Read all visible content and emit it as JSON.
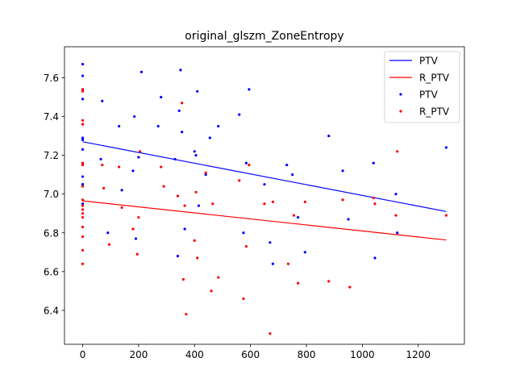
{
  "chart_data": {
    "type": "scatter",
    "title": "original_glszm_ZoneEntropy",
    "xlabel": "",
    "ylabel": "",
    "xlim": [
      -65,
      1365
    ],
    "ylim": [
      6.225,
      7.76
    ],
    "x_ticks": [
      0,
      200,
      400,
      600,
      800,
      1000,
      1200
    ],
    "x_tick_labels": [
      "0",
      "200",
      "400",
      "600",
      "800",
      "1000",
      "1200"
    ],
    "y_ticks": [
      6.4,
      6.6,
      6.8,
      7.0,
      7.2,
      7.4,
      7.6
    ],
    "y_tick_labels": [
      "6.4",
      "6.6",
      "6.8",
      "7.0",
      "7.2",
      "7.4",
      "7.6"
    ],
    "grid": false,
    "legend_position": "top-right",
    "series": [
      {
        "name": "PTV",
        "kind": "line",
        "color": "#0000ff",
        "x": [
          0,
          1300
        ],
        "y": [
          7.27,
          6.91
        ]
      },
      {
        "name": "R_PTV",
        "kind": "line",
        "color": "#ff0000",
        "x": [
          0,
          1300
        ],
        "y": [
          6.965,
          6.763
        ]
      },
      {
        "name": "PTV",
        "kind": "scatter",
        "color": "#0000ff",
        "x": [
          0,
          0,
          0,
          0,
          0,
          0,
          0,
          0,
          0,
          0,
          0,
          0,
          0,
          0,
          65,
          70,
          90,
          130,
          140,
          180,
          185,
          190,
          200,
          210,
          270,
          280,
          330,
          340,
          345,
          350,
          355,
          365,
          400,
          405,
          410,
          415,
          440,
          455,
          485,
          560,
          575,
          585,
          595,
          650,
          670,
          680,
          730,
          750,
          770,
          795,
          880,
          930,
          950,
          1040,
          1045,
          1120,
          1125,
          1300
        ],
        "y": [
          7.67,
          7.61,
          7.54,
          7.49,
          7.36,
          7.29,
          7.28,
          7.23,
          7.16,
          7.09,
          7.05,
          7.05,
          6.95,
          6.92,
          7.18,
          7.48,
          6.8,
          7.35,
          7.02,
          7.12,
          7.4,
          6.77,
          7.19,
          7.63,
          7.35,
          7.5,
          7.18,
          6.68,
          7.43,
          7.64,
          7.32,
          6.82,
          7.22,
          7.2,
          7.53,
          6.94,
          7.1,
          7.29,
          7.35,
          7.41,
          6.8,
          7.16,
          7.54,
          7.05,
          6.75,
          6.64,
          7.15,
          7.1,
          6.88,
          6.7,
          7.3,
          7.12,
          6.87,
          7.16,
          6.67,
          7.0,
          6.8,
          7.24
        ]
      },
      {
        "name": "R_PTV",
        "kind": "scatter",
        "color": "#ff0000",
        "x": [
          0,
          0,
          0,
          0,
          0,
          0,
          0,
          0,
          0,
          0,
          0,
          0,
          0,
          0,
          0,
          0,
          70,
          75,
          95,
          130,
          140,
          180,
          195,
          200,
          205,
          280,
          290,
          340,
          355,
          360,
          365,
          370,
          400,
          405,
          410,
          440,
          460,
          465,
          485,
          560,
          575,
          585,
          595,
          650,
          670,
          680,
          735,
          755,
          770,
          795,
          880,
          930,
          955,
          1040,
          1045,
          1120,
          1125,
          1300
        ],
        "y": [
          7.54,
          7.53,
          7.38,
          7.36,
          7.16,
          7.15,
          7.04,
          6.97,
          6.94,
          6.92,
          6.9,
          6.88,
          6.83,
          6.78,
          6.71,
          6.64,
          7.15,
          7.03,
          6.74,
          7.14,
          6.93,
          6.82,
          6.69,
          6.88,
          7.22,
          7.14,
          7.04,
          6.99,
          7.47,
          6.56,
          6.94,
          6.38,
          6.76,
          7.01,
          6.67,
          7.11,
          6.5,
          6.95,
          6.57,
          7.07,
          6.46,
          6.73,
          7.15,
          6.95,
          6.28,
          6.96,
          6.64,
          6.89,
          6.54,
          6.96,
          6.55,
          6.97,
          6.52,
          6.98,
          6.95,
          6.89,
          7.22,
          6.89
        ]
      }
    ]
  }
}
